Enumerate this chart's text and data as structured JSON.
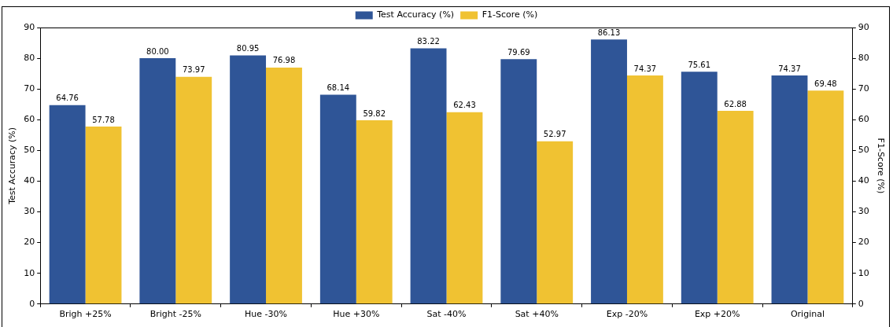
{
  "chart_data": {
    "type": "bar",
    "ylabel": "Test Accuracy (%)",
    "y2label": "F1-Score (%)",
    "categories": [
      "Brigh +25%",
      "Bright -25%",
      "Hue -30%",
      "Hue +30%",
      "Sat -40%",
      "Sat +40%",
      "Exp -20%",
      "Exp +20%",
      "Original"
    ],
    "series": [
      {
        "name": "Test Accuracy (%)",
        "color": "#2f5597",
        "values": [
          64.76,
          80.0,
          80.95,
          68.14,
          83.22,
          79.69,
          86.13,
          75.61,
          74.37
        ],
        "value_labels": [
          "64.76",
          "80.00",
          "80.95",
          "68.14",
          "83.22",
          "79.69",
          "86.13",
          "75.61",
          "74.37"
        ]
      },
      {
        "name": "F1-Score (%)",
        "color": "#f0c232",
        "axis": "y2",
        "values": [
          57.78,
          73.97,
          76.98,
          59.82,
          62.43,
          52.97,
          74.37,
          62.88,
          69.48
        ],
        "value_labels": [
          "57.78",
          "73.97",
          "76.98",
          "59.82",
          "62.43",
          "52.97",
          "74.37",
          "62.88",
          "69.48"
        ]
      }
    ],
    "ylim": [
      0,
      90
    ],
    "yticks": [
      0,
      10,
      20,
      30,
      40,
      50,
      60,
      70,
      80,
      90
    ],
    "y2lim": [
      0,
      90
    ],
    "y2ticks": [
      0,
      10,
      20,
      30,
      40,
      50,
      60,
      70,
      80,
      90
    ],
    "grid": false,
    "legend": "top"
  }
}
